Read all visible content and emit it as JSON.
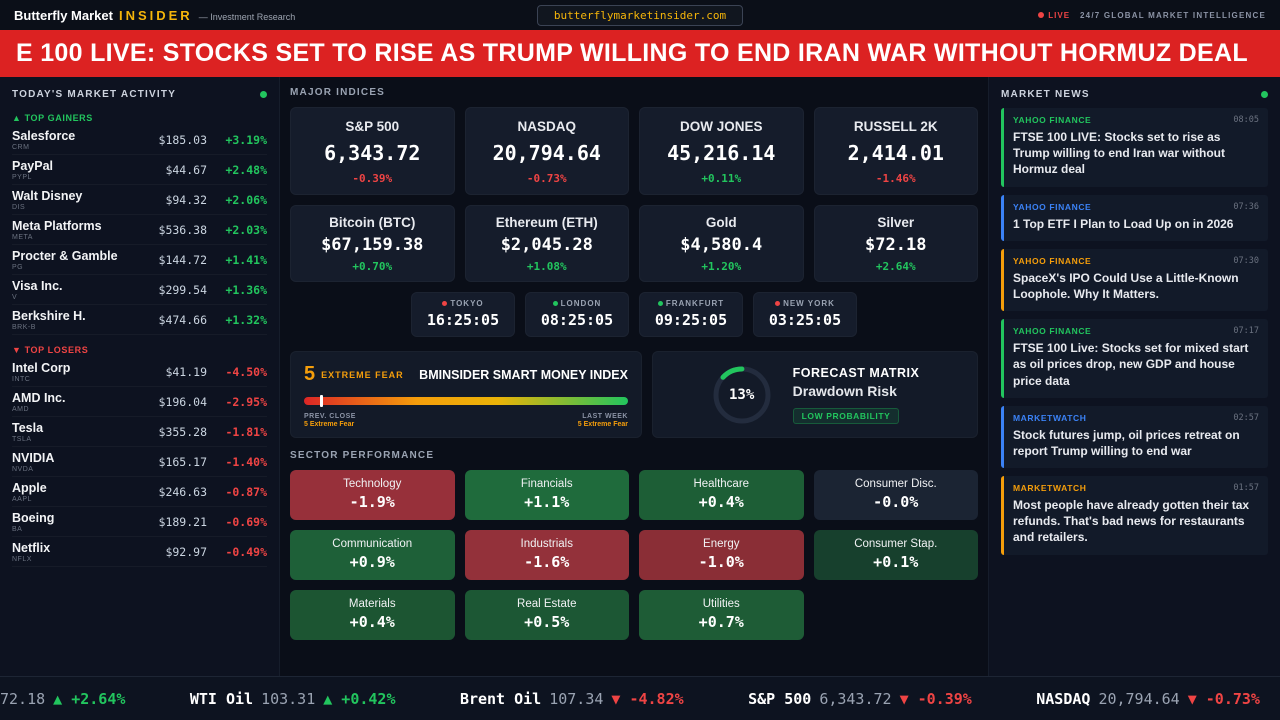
{
  "header": {
    "brand_main": "Butterfly Market",
    "brand_accent": "INSIDER",
    "tagline": "— Investment Research",
    "domain_pill": "butterflymarketinsider.com",
    "live_label": "LIVE",
    "intel_label": "24/7 GLOBAL MARKET INTELLIGENCE"
  },
  "breaking_banner": "E 100 LIVE: STOCKS SET TO RISE AS TRUMP WILLING TO END IRAN WAR WITHOUT HORMUZ DEAL",
  "market_activity": {
    "title": "TODAY'S MARKET ACTIVITY",
    "gainers_label": "▲ TOP GAINERS",
    "losers_label": "▼ TOP LOSERS",
    "gainers": [
      {
        "name": "Salesforce",
        "ticker": "CRM",
        "price": "$185.03",
        "change": "+3.19%"
      },
      {
        "name": "PayPal",
        "ticker": "PYPL",
        "price": "$44.67",
        "change": "+2.48%"
      },
      {
        "name": "Walt Disney",
        "ticker": "DIS",
        "price": "$94.32",
        "change": "+2.06%"
      },
      {
        "name": "Meta Platforms",
        "ticker": "META",
        "price": "$536.38",
        "change": "+2.03%"
      },
      {
        "name": "Procter & Gamble",
        "ticker": "PG",
        "price": "$144.72",
        "change": "+1.41%"
      },
      {
        "name": "Visa Inc.",
        "ticker": "V",
        "price": "$299.54",
        "change": "+1.36%"
      },
      {
        "name": "Berkshire H.",
        "ticker": "BRK-B",
        "price": "$474.66",
        "change": "+1.32%"
      }
    ],
    "losers": [
      {
        "name": "Intel Corp",
        "ticker": "INTC",
        "price": "$41.19",
        "change": "-4.50%"
      },
      {
        "name": "AMD Inc.",
        "ticker": "AMD",
        "price": "$196.04",
        "change": "-2.95%"
      },
      {
        "name": "Tesla",
        "ticker": "TSLA",
        "price": "$355.28",
        "change": "-1.81%"
      },
      {
        "name": "NVIDIA",
        "ticker": "NVDA",
        "price": "$165.17",
        "change": "-1.40%"
      },
      {
        "name": "Apple",
        "ticker": "AAPL",
        "price": "$246.63",
        "change": "-0.87%"
      },
      {
        "name": "Boeing",
        "ticker": "BA",
        "price": "$189.21",
        "change": "-0.69%"
      },
      {
        "name": "Netflix",
        "ticker": "NFLX",
        "price": "$92.97",
        "change": "-0.49%"
      }
    ]
  },
  "major_indices": {
    "title": "MAJOR INDICES",
    "row1": [
      {
        "name": "S&P 500",
        "value": "6,343.72",
        "change": "-0.39%",
        "dir": "down"
      },
      {
        "name": "NASDAQ",
        "value": "20,794.64",
        "change": "-0.73%",
        "dir": "down"
      },
      {
        "name": "DOW JONES",
        "value": "45,216.14",
        "change": "+0.11%",
        "dir": "up"
      },
      {
        "name": "RUSSELL 2K",
        "value": "2,414.01",
        "change": "-1.46%",
        "dir": "down"
      }
    ],
    "row2": [
      {
        "name": "Bitcoin (BTC)",
        "value": "$67,159.38",
        "change": "+0.70%",
        "dir": "up"
      },
      {
        "name": "Ethereum (ETH)",
        "value": "$2,045.28",
        "change": "+1.08%",
        "dir": "up"
      },
      {
        "name": "Gold",
        "value": "$4,580.4",
        "change": "+1.20%",
        "dir": "up"
      },
      {
        "name": "Silver",
        "value": "$72.18",
        "change": "+2.64%",
        "dir": "up"
      }
    ]
  },
  "world_clocks": [
    {
      "city": "TOKYO",
      "time": "16:25:05",
      "status_color": "#ef4444"
    },
    {
      "city": "LONDON",
      "time": "08:25:05",
      "status_color": "#22c55e"
    },
    {
      "city": "FRANKFURT",
      "time": "09:25:05",
      "status_color": "#22c55e"
    },
    {
      "city": "NEW YORK",
      "time": "03:25:05",
      "status_color": "#ef4444"
    }
  ],
  "smart_money_index": {
    "score": "5",
    "score_label": "EXTREME FEAR",
    "title": "BMINSIDER SMART MONEY INDEX",
    "prev_close_label": "PREV. CLOSE",
    "prev_close_value": "5 Extreme Fear",
    "last_week_label": "LAST WEEK",
    "last_week_value": "5 Extreme Fear",
    "marker_percent": 5
  },
  "forecast_matrix": {
    "percent": "13%",
    "percent_value": 13,
    "title": "FORECAST MATRIX",
    "subtitle": "Drawdown Risk",
    "badge": "LOW PROBABILITY"
  },
  "sector_performance": {
    "title": "SECTOR PERFORMANCE",
    "sectors": [
      {
        "name": "Technology",
        "change": "-1.9%",
        "bg": "#97303a"
      },
      {
        "name": "Financials",
        "change": "+1.1%",
        "bg": "#1f6b3c"
      },
      {
        "name": "Healthcare",
        "change": "+0.4%",
        "bg": "#1d5e36"
      },
      {
        "name": "Consumer Disc.",
        "change": "-0.0%",
        "bg": "#1b2433"
      },
      {
        "name": "Communication",
        "change": "+0.9%",
        "bg": "#1e6038"
      },
      {
        "name": "Industrials",
        "change": "-1.6%",
        "bg": "#93313a"
      },
      {
        "name": "Energy",
        "change": "-1.0%",
        "bg": "#8a2e36"
      },
      {
        "name": "Consumer Stap.",
        "change": "+0.1%",
        "bg": "#17402d"
      },
      {
        "name": "Materials",
        "change": "+0.4%",
        "bg": "#1c5532"
      },
      {
        "name": "Real Estate",
        "change": "+0.5%",
        "bg": "#1c5734"
      },
      {
        "name": "Utilities",
        "change": "+0.7%",
        "bg": "#1e5c36"
      }
    ]
  },
  "market_news": {
    "title": "MARKET NEWS",
    "items": [
      {
        "source": "YAHOO FINANCE",
        "time": "08:05",
        "color": "#22c55e",
        "headline": "FTSE 100 LIVE: Stocks set to rise as Trump willing to end Iran war without Hormuz deal"
      },
      {
        "source": "YAHOO FINANCE",
        "time": "07:36",
        "color": "#3b82f6",
        "headline": "1 Top ETF I Plan to Load Up on in 2026"
      },
      {
        "source": "YAHOO FINANCE",
        "time": "07:30",
        "color": "#f59e0b",
        "headline": "SpaceX's IPO Could Use a Little-Known Loophole. Why It Matters."
      },
      {
        "source": "YAHOO FINANCE",
        "time": "07:17",
        "color": "#22c55e",
        "headline": "FTSE 100 Live: Stocks set for mixed start as oil prices drop, new GDP and house price data"
      },
      {
        "source": "MARKETWATCH",
        "time": "02:57",
        "color": "#3b82f6",
        "headline": "Stock futures jump, oil prices retreat on report Trump willing to end war"
      },
      {
        "source": "MARKETWATCH",
        "time": "01:57",
        "color": "#f59e0b",
        "headline": "Most people have already gotten their tax refunds. That's bad news for restaurants and retailers."
      }
    ]
  },
  "ticker_bar": [
    {
      "label": "",
      "value": "72.18",
      "arrow": "▲",
      "change": "+2.64%",
      "dir": "up"
    },
    {
      "label": "WTI Oil",
      "value": "103.31",
      "arrow": "▲",
      "change": "+0.42%",
      "dir": "up"
    },
    {
      "label": "Brent Oil",
      "value": "107.34",
      "arrow": "▼",
      "change": "-4.82%",
      "dir": "down"
    },
    {
      "label": "S&P 500",
      "value": "6,343.72",
      "arrow": "▼",
      "change": "-0.39%",
      "dir": "down"
    },
    {
      "label": "NASDAQ",
      "value": "20,794.64",
      "arrow": "▼",
      "change": "-0.73%",
      "dir": "down"
    }
  ],
  "colors": {
    "accent_yellow": "#f5b50a",
    "positive": "#22c55e",
    "negative": "#ef4444",
    "banner_red": "#dc2222"
  }
}
